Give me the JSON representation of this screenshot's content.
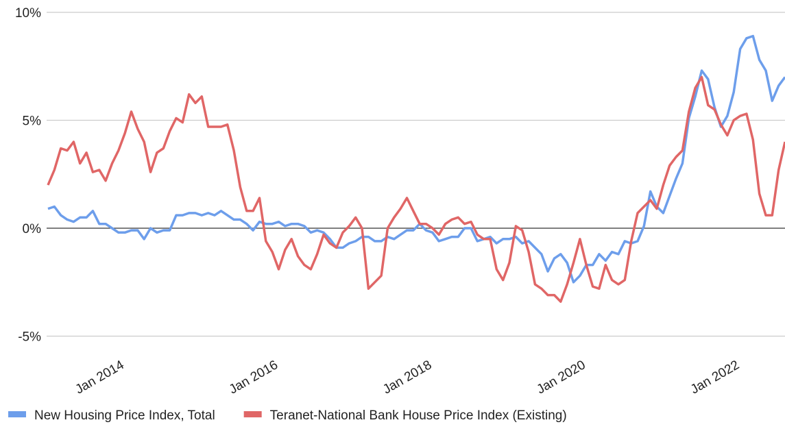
{
  "chart_data": {
    "type": "line",
    "x": [
      "2013-01",
      "2013-02",
      "2013-03",
      "2013-04",
      "2013-05",
      "2013-06",
      "2013-07",
      "2013-08",
      "2013-09",
      "2013-10",
      "2013-11",
      "2013-12",
      "2014-01",
      "2014-02",
      "2014-03",
      "2014-04",
      "2014-05",
      "2014-06",
      "2014-07",
      "2014-08",
      "2014-09",
      "2014-10",
      "2014-11",
      "2014-12",
      "2015-01",
      "2015-02",
      "2015-03",
      "2015-04",
      "2015-05",
      "2015-06",
      "2015-07",
      "2015-08",
      "2015-09",
      "2015-10",
      "2015-11",
      "2015-12",
      "2016-01",
      "2016-02",
      "2016-03",
      "2016-04",
      "2016-05",
      "2016-06",
      "2016-07",
      "2016-08",
      "2016-09",
      "2016-10",
      "2016-11",
      "2016-12",
      "2017-01",
      "2017-02",
      "2017-03",
      "2017-04",
      "2017-05",
      "2017-06",
      "2017-07",
      "2017-08",
      "2017-09",
      "2017-10",
      "2017-11",
      "2017-12",
      "2018-01",
      "2018-02",
      "2018-03",
      "2018-04",
      "2018-05",
      "2018-06",
      "2018-07",
      "2018-08",
      "2018-09",
      "2018-10",
      "2018-11",
      "2018-12",
      "2019-01",
      "2019-02",
      "2019-03",
      "2019-04",
      "2019-05",
      "2019-06",
      "2019-07",
      "2019-08",
      "2019-09",
      "2019-10",
      "2019-11",
      "2019-12",
      "2020-01",
      "2020-02",
      "2020-03",
      "2020-04",
      "2020-05",
      "2020-06",
      "2020-07",
      "2020-08",
      "2020-09",
      "2020-10",
      "2020-11",
      "2020-12",
      "2021-01",
      "2021-02",
      "2021-03",
      "2021-04",
      "2021-05",
      "2021-06",
      "2021-07",
      "2021-08",
      "2021-09",
      "2021-10",
      "2021-11",
      "2021-12",
      "2022-01",
      "2022-02",
      "2022-03",
      "2022-04",
      "2022-05",
      "2022-06",
      "2022-07",
      "2022-08"
    ],
    "series": [
      {
        "name": "New Housing Price Index, Total",
        "color": "#6d9eeb",
        "values": [
          0.9,
          1.0,
          0.6,
          0.4,
          0.3,
          0.5,
          0.5,
          0.8,
          0.2,
          0.2,
          0.0,
          -0.2,
          -0.2,
          -0.1,
          -0.1,
          -0.5,
          0.0,
          -0.2,
          -0.1,
          -0.1,
          0.6,
          0.6,
          0.7,
          0.7,
          0.6,
          0.7,
          0.6,
          0.8,
          0.6,
          0.4,
          0.4,
          0.2,
          -0.1,
          0.3,
          0.2,
          0.2,
          0.3,
          0.1,
          0.2,
          0.2,
          0.1,
          -0.2,
          -0.1,
          -0.2,
          -0.5,
          -0.9,
          -0.9,
          -0.7,
          -0.6,
          -0.4,
          -0.4,
          -0.6,
          -0.6,
          -0.4,
          -0.5,
          -0.3,
          -0.1,
          -0.1,
          0.2,
          -0.1,
          -0.2,
          -0.6,
          -0.5,
          -0.4,
          -0.4,
          0.0,
          0.0,
          -0.6,
          -0.5,
          -0.4,
          -0.7,
          -0.5,
          -0.5,
          -0.4,
          -0.7,
          -0.6,
          -0.9,
          -1.2,
          -2.0,
          -1.4,
          -1.2,
          -1.6,
          -2.5,
          -2.2,
          -1.7,
          -1.7,
          -1.2,
          -1.5,
          -1.1,
          -1.2,
          -0.6,
          -0.7,
          -0.6,
          0.1,
          1.7,
          1.0,
          0.7,
          1.5,
          2.3,
          3.0,
          5.1,
          6.1,
          7.3,
          6.9,
          5.6,
          4.7,
          5.2,
          6.3,
          8.3,
          8.8,
          8.9,
          7.8,
          7.3,
          5.9,
          6.6,
          7.0
        ]
      },
      {
        "name": "Teranet-National Bank House Price Index (Existing)",
        "color": "#e06666",
        "values": [
          2.0,
          2.7,
          3.7,
          3.6,
          4.0,
          3.0,
          3.5,
          2.6,
          2.7,
          2.2,
          3.0,
          3.6,
          4.4,
          5.4,
          4.6,
          4.0,
          2.6,
          3.5,
          3.7,
          4.5,
          5.1,
          4.9,
          6.2,
          5.8,
          6.1,
          4.7,
          4.7,
          4.7,
          4.8,
          3.6,
          1.9,
          0.8,
          0.8,
          1.4,
          -0.6,
          -1.1,
          -1.9,
          -1.0,
          -0.5,
          -1.3,
          -1.7,
          -1.9,
          -1.2,
          -0.3,
          -0.7,
          -0.9,
          -0.2,
          0.1,
          0.5,
          0.0,
          -2.8,
          -2.5,
          -2.2,
          0.0,
          0.5,
          0.9,
          1.4,
          0.8,
          0.2,
          0.2,
          0.0,
          -0.3,
          0.2,
          0.4,
          0.5,
          0.2,
          0.3,
          -0.3,
          -0.5,
          -0.5,
          -1.9,
          -2.4,
          -1.6,
          0.1,
          -0.1,
          -1.1,
          -2.6,
          -2.8,
          -3.1,
          -3.1,
          -3.4,
          -2.6,
          -1.6,
          -0.5,
          -1.7,
          -2.7,
          -2.8,
          -1.7,
          -2.4,
          -2.6,
          -2.4,
          -0.6,
          0.7,
          1.0,
          1.3,
          0.9,
          2.0,
          2.9,
          3.3,
          3.6,
          5.4,
          6.5,
          7.0,
          5.7,
          5.5,
          4.8,
          4.3,
          5.0,
          5.2,
          5.3,
          4.1,
          1.6,
          0.6,
          0.6,
          2.7,
          4.0
        ]
      }
    ],
    "ylim": [
      -6,
      10
    ],
    "yticks": [
      {
        "value": -5,
        "label": "-5%"
      },
      {
        "value": 0,
        "label": "0%"
      },
      {
        "value": 5,
        "label": "5%"
      },
      {
        "value": 10,
        "label": "10%"
      }
    ],
    "xticks": [
      {
        "value": "2014-01",
        "label": "Jan 2014"
      },
      {
        "value": "2016-01",
        "label": "Jan 2016"
      },
      {
        "value": "2018-01",
        "label": "Jan 2018"
      },
      {
        "value": "2020-01",
        "label": "Jan 2020"
      },
      {
        "value": "2022-01",
        "label": "Jan 2022"
      }
    ],
    "grid": true,
    "legend": "bottom"
  }
}
